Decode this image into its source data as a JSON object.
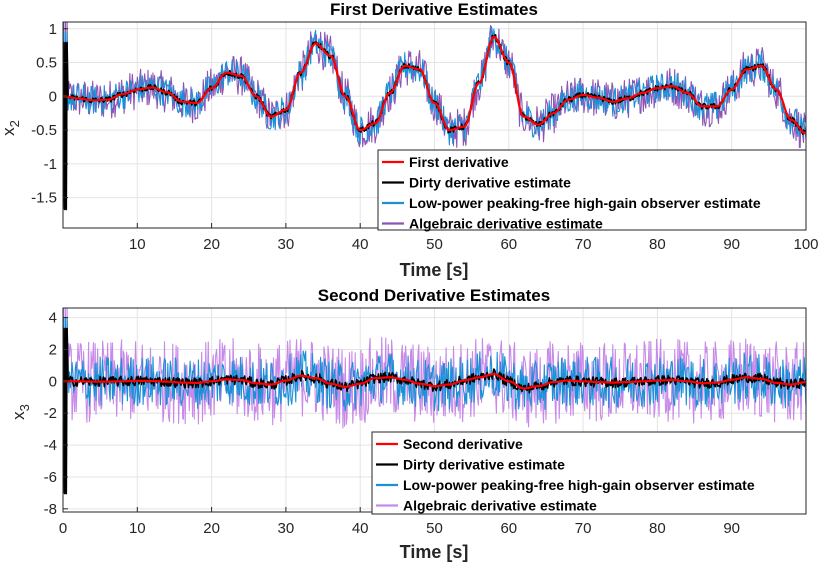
{
  "chart_data": [
    {
      "type": "line",
      "title": "First Derivative Estimates",
      "xlabel": "Time [s]",
      "ylabel": "x",
      "ylabel_sub": "2",
      "xlim": [
        0,
        100
      ],
      "ylim": [
        -1.95,
        1.1
      ],
      "xticks": [
        10,
        20,
        30,
        40,
        50,
        60,
        70,
        80,
        90,
        100
      ],
      "yticks": [
        1,
        0.5,
        0,
        -0.5,
        -1,
        -1.5
      ],
      "grid": true,
      "legend_position": "bottom-right",
      "series": [
        {
          "name": "First derivative",
          "color": "#ff0000",
          "kind": "true"
        },
        {
          "name": "Dirty derivative estimate",
          "color": "#000000",
          "kind": "dirty"
        },
        {
          "name": "Low-power peaking-free high-gain observer estimate",
          "color": "#1a90d8",
          "kind": "hgo"
        },
        {
          "name": "Algebraic derivative estimate",
          "color": "#8e54b4",
          "kind": "alg"
        }
      ],
      "x": [
        0,
        2,
        4,
        6,
        8,
        10,
        12,
        14,
        16,
        18,
        20,
        22,
        24,
        26,
        28,
        30,
        32,
        34,
        36,
        38,
        40,
        42,
        44,
        46,
        48,
        50,
        52,
        54,
        56,
        58,
        60,
        62,
        64,
        66,
        68,
        70,
        72,
        74,
        76,
        78,
        80,
        82,
        84,
        86,
        88,
        90,
        92,
        94,
        96,
        98,
        100
      ],
      "y_true": [
        0,
        -0.03,
        -0.06,
        -0.05,
        0.03,
        0.1,
        0.13,
        0.06,
        -0.08,
        -0.1,
        0.12,
        0.35,
        0.3,
        0.0,
        -0.3,
        -0.2,
        0.35,
        0.78,
        0.6,
        0.0,
        -0.5,
        -0.4,
        0.05,
        0.45,
        0.4,
        -0.1,
        -0.5,
        -0.45,
        0.2,
        0.88,
        0.5,
        -0.3,
        -0.42,
        -0.25,
        -0.05,
        0.02,
        -0.02,
        -0.08,
        -0.03,
        0.05,
        0.12,
        0.15,
        0.05,
        -0.15,
        -0.15,
        0.1,
        0.4,
        0.45,
        0.1,
        -0.35,
        -0.55
      ],
      "noise_spread_hgo": 0.22,
      "noise_spread_alg": 0.3
    },
    {
      "type": "line",
      "title": "Second Derivative Estimates",
      "xlabel": "Time [s]",
      "ylabel": "x",
      "ylabel_sub": "3",
      "xlim": [
        0,
        100
      ],
      "ylim": [
        -8.2,
        4.6
      ],
      "xticks": [
        0,
        10,
        20,
        30,
        40,
        50,
        60,
        70,
        80,
        90
      ],
      "yticks": [
        4,
        2,
        0,
        -2,
        -4,
        -6,
        -8
      ],
      "grid": true,
      "legend_position": "bottom-right",
      "series": [
        {
          "name": "Second derivative",
          "color": "#ff0000",
          "kind": "true"
        },
        {
          "name": "Dirty derivative estimate",
          "color": "#000000",
          "kind": "dirty"
        },
        {
          "name": "Low-power peaking-free high-gain observer estimate",
          "color": "#1a90d8",
          "kind": "hgo"
        },
        {
          "name": "Algebraic derivative estimate",
          "color": "#c88ae8",
          "kind": "alg"
        }
      ],
      "x": [
        0,
        2,
        4,
        6,
        8,
        10,
        12,
        14,
        16,
        18,
        20,
        22,
        24,
        26,
        28,
        30,
        32,
        34,
        36,
        38,
        40,
        42,
        44,
        46,
        48,
        50,
        52,
        54,
        56,
        58,
        60,
        62,
        64,
        66,
        68,
        70,
        72,
        74,
        76,
        78,
        80,
        82,
        84,
        86,
        88,
        90,
        92,
        94,
        96,
        98,
        100
      ],
      "y_true": [
        0,
        0,
        -0.02,
        -0.02,
        0,
        0.03,
        0.02,
        -0.02,
        -0.08,
        -0.1,
        0.0,
        0.12,
        0.08,
        -0.12,
        -0.2,
        0.05,
        0.35,
        0.2,
        -0.15,
        -0.35,
        -0.15,
        0.2,
        0.25,
        0.1,
        -0.15,
        -0.3,
        -0.2,
        0.05,
        0.25,
        0.45,
        0.0,
        -0.45,
        -0.3,
        -0.05,
        0.05,
        0.0,
        -0.05,
        -0.08,
        -0.05,
        0.0,
        0.05,
        0.08,
        0.0,
        -0.12,
        -0.08,
        0.1,
        0.25,
        0.15,
        -0.1,
        -0.2,
        -0.05
      ],
      "noise_spread_hgo": 1.6,
      "noise_spread_alg": 2.6
    }
  ]
}
